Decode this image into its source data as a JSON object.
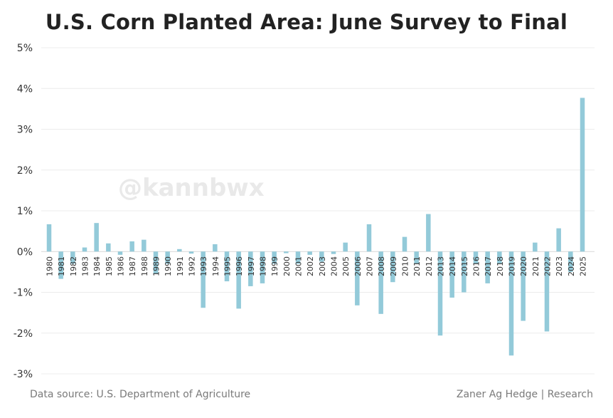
{
  "chart_data": {
    "type": "bar",
    "title": "U.S. Corn Planted Area: June Survey to Final",
    "xlabel": "",
    "ylabel": "",
    "ylim": [
      -3,
      5
    ],
    "yticks": [
      "5%",
      "4%",
      "3%",
      "2%",
      "1%",
      "0%",
      "-1%",
      "-2%",
      "-3%"
    ],
    "ytick_values": [
      5,
      4,
      3,
      2,
      1,
      0,
      -1,
      -2,
      -3
    ],
    "grid": true,
    "bar_color": "#93cad9",
    "categories": [
      "1980",
      "1981",
      "1982",
      "1983",
      "1984",
      "1985",
      "1986",
      "1987",
      "1988",
      "1989",
      "1990",
      "1991",
      "1992",
      "1993",
      "1994",
      "1995",
      "1996",
      "1997",
      "1998",
      "1999",
      "2000",
      "2001",
      "2002",
      "2003",
      "2004",
      "2005",
      "2006",
      "2007",
      "2008",
      "2009",
      "2010",
      "2011",
      "2012",
      "2013",
      "2014",
      "2015",
      "2016",
      "2017",
      "2018",
      "2019",
      "2020",
      "2021",
      "2022",
      "2023",
      "2024",
      "2025"
    ],
    "values": [
      0.67,
      -0.67,
      -0.3,
      0.1,
      0.7,
      0.2,
      -0.08,
      0.25,
      0.29,
      -0.55,
      -0.3,
      0.06,
      -0.05,
      -1.38,
      0.18,
      -0.73,
      -1.4,
      -0.85,
      -0.78,
      -0.3,
      -0.04,
      -0.3,
      -0.08,
      -0.25,
      -0.06,
      0.22,
      -1.32,
      0.67,
      -1.53,
      -0.75,
      0.36,
      -0.3,
      0.92,
      -2.06,
      -1.13,
      -1.0,
      -0.3,
      -0.78,
      -0.3,
      -2.55,
      -1.7,
      0.22,
      -1.96,
      0.57,
      -0.5,
      3.77
    ]
  },
  "watermark": "@kannbwx",
  "footer": {
    "source": "Data source: U.S. Department of Agriculture",
    "credit": "Zaner Ag Hedge | Research"
  }
}
